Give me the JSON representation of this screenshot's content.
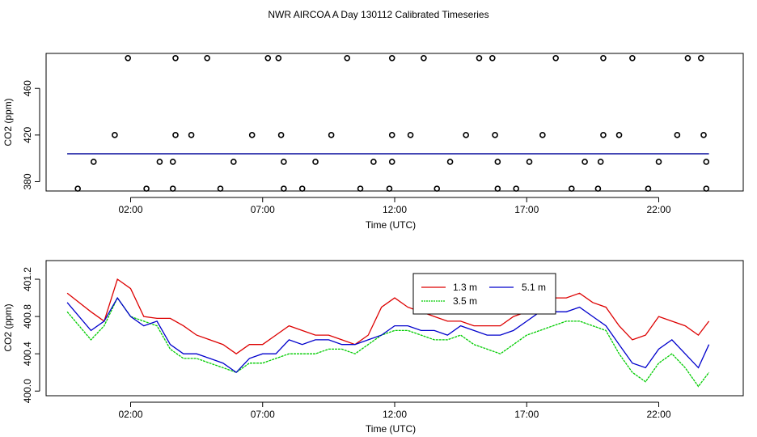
{
  "title": "NWR AIRCOA A  Day 130112  Calibrated Timeseries",
  "chart_data": [
    {
      "type": "scatter",
      "xlabel": "Time (UTC)",
      "ylabel": "CO2 (ppm)",
      "xlim": [
        -1.2,
        25.2
      ],
      "ylim": [
        372,
        490
      ],
      "x_ticks": [
        2,
        7,
        12,
        17,
        22
      ],
      "x_tick_labels": [
        "02:00",
        "07:00",
        "12:00",
        "17:00",
        "22:00"
      ],
      "y_ticks": [
        380,
        420,
        460
      ],
      "y_tick_labels": [
        "380",
        "420",
        "460"
      ],
      "points": [
        {
          "x": 0.0,
          "y": 374
        },
        {
          "x": 0.6,
          "y": 397
        },
        {
          "x": 1.4,
          "y": 420
        },
        {
          "x": 1.9,
          "y": 486
        },
        {
          "x": 2.6,
          "y": 374
        },
        {
          "x": 3.1,
          "y": 397
        },
        {
          "x": 3.6,
          "y": 374
        },
        {
          "x": 3.6,
          "y": 397
        },
        {
          "x": 3.7,
          "y": 420
        },
        {
          "x": 3.7,
          "y": 486
        },
        {
          "x": 4.3,
          "y": 420
        },
        {
          "x": 4.9,
          "y": 486
        },
        {
          "x": 5.4,
          "y": 374
        },
        {
          "x": 5.9,
          "y": 397
        },
        {
          "x": 6.6,
          "y": 420
        },
        {
          "x": 7.2,
          "y": 486
        },
        {
          "x": 7.6,
          "y": 486
        },
        {
          "x": 7.7,
          "y": 420
        },
        {
          "x": 7.8,
          "y": 397
        },
        {
          "x": 7.8,
          "y": 374
        },
        {
          "x": 8.5,
          "y": 374
        },
        {
          "x": 9.0,
          "y": 397
        },
        {
          "x": 9.6,
          "y": 420
        },
        {
          "x": 10.2,
          "y": 486
        },
        {
          "x": 10.7,
          "y": 374
        },
        {
          "x": 11.2,
          "y": 397
        },
        {
          "x": 11.8,
          "y": 374
        },
        {
          "x": 11.9,
          "y": 397
        },
        {
          "x": 11.9,
          "y": 420
        },
        {
          "x": 11.9,
          "y": 486
        },
        {
          "x": 12.6,
          "y": 420
        },
        {
          "x": 13.1,
          "y": 486
        },
        {
          "x": 13.6,
          "y": 374
        },
        {
          "x": 14.1,
          "y": 397
        },
        {
          "x": 14.7,
          "y": 420
        },
        {
          "x": 15.2,
          "y": 486
        },
        {
          "x": 15.7,
          "y": 486
        },
        {
          "x": 15.8,
          "y": 420
        },
        {
          "x": 15.9,
          "y": 397
        },
        {
          "x": 15.9,
          "y": 374
        },
        {
          "x": 16.6,
          "y": 374
        },
        {
          "x": 17.1,
          "y": 397
        },
        {
          "x": 17.6,
          "y": 420
        },
        {
          "x": 18.1,
          "y": 486
        },
        {
          "x": 18.7,
          "y": 374
        },
        {
          "x": 19.2,
          "y": 397
        },
        {
          "x": 19.7,
          "y": 374
        },
        {
          "x": 19.8,
          "y": 397
        },
        {
          "x": 19.9,
          "y": 420
        },
        {
          "x": 19.9,
          "y": 486
        },
        {
          "x": 20.5,
          "y": 420
        },
        {
          "x": 21.0,
          "y": 486
        },
        {
          "x": 21.6,
          "y": 374
        },
        {
          "x": 22.0,
          "y": 397
        },
        {
          "x": 22.7,
          "y": 420
        },
        {
          "x": 23.1,
          "y": 486
        },
        {
          "x": 23.6,
          "y": 486
        },
        {
          "x": 23.7,
          "y": 420
        },
        {
          "x": 23.8,
          "y": 397
        },
        {
          "x": 23.8,
          "y": 374
        }
      ],
      "series": [
        {
          "name": "1.3 m",
          "color": "#dd0000",
          "y": 400.8
        },
        {
          "name": "3.5 m",
          "color": "#00cc00",
          "y": 400.4
        },
        {
          "name": "5.1 m",
          "color": "#0000cc",
          "y": 400.6
        }
      ]
    },
    {
      "type": "line",
      "xlabel": "Time (UTC)",
      "ylabel": "CO2 (ppm)",
      "xlim": [
        -1.2,
        25.2
      ],
      "ylim": [
        399.95,
        401.4
      ],
      "x_ticks": [
        2,
        7,
        12,
        17,
        22
      ],
      "x_tick_labels": [
        "02:00",
        "07:00",
        "12:00",
        "17:00",
        "22:00"
      ],
      "y_ticks": [
        400.0,
        400.4,
        400.8,
        401.2
      ],
      "y_tick_labels": [
        "400.0",
        "400.4",
        "400.8",
        "401.2"
      ],
      "legend": {
        "position": "top-center",
        "entries": [
          "1.3 m",
          "5.1 m",
          "3.5 m"
        ]
      },
      "series": [
        {
          "name": "1.3 m",
          "color": "#dd0000",
          "x": [
            -0.4,
            0.5,
            1.0,
            1.5,
            2.0,
            2.5,
            3.0,
            3.5,
            4.0,
            4.5,
            5.0,
            5.5,
            6.0,
            6.5,
            7.0,
            7.5,
            8.0,
            8.5,
            9.0,
            9.5,
            10.0,
            10.5,
            11.0,
            11.5,
            12.0,
            12.5,
            13.0,
            13.5,
            14.0,
            14.5,
            15.0,
            15.5,
            16.0,
            16.5,
            17.0,
            17.5,
            18.0,
            18.5,
            19.0,
            19.5,
            20.0,
            20.5,
            21.0,
            21.5,
            22.0,
            22.5,
            23.0,
            23.5,
            23.9
          ],
          "values": [
            401.05,
            400.85,
            400.75,
            401.2,
            401.1,
            400.8,
            400.78,
            400.78,
            400.7,
            400.6,
            400.55,
            400.5,
            400.4,
            400.5,
            400.5,
            400.6,
            400.7,
            400.65,
            400.6,
            400.6,
            400.55,
            400.5,
            400.6,
            400.9,
            401.0,
            400.9,
            400.85,
            400.8,
            400.75,
            400.75,
            400.7,
            400.7,
            400.7,
            400.8,
            400.85,
            400.95,
            401.0,
            401.0,
            401.05,
            400.95,
            400.9,
            400.7,
            400.55,
            400.6,
            400.8,
            400.75,
            400.7,
            400.6,
            400.75
          ]
        },
        {
          "name": "3.5 m",
          "color": "#00cc00",
          "x": [
            -0.4,
            0.5,
            1.0,
            1.5,
            2.0,
            2.5,
            3.0,
            3.5,
            4.0,
            4.5,
            5.0,
            5.5,
            6.0,
            6.5,
            7.0,
            7.5,
            8.0,
            8.5,
            9.0,
            9.5,
            10.0,
            10.5,
            11.0,
            11.5,
            12.0,
            12.5,
            13.0,
            13.5,
            14.0,
            14.5,
            15.0,
            15.5,
            16.0,
            16.5,
            17.0,
            17.5,
            18.0,
            18.5,
            19.0,
            19.5,
            20.0,
            20.5,
            21.0,
            21.5,
            22.0,
            22.5,
            23.0,
            23.5,
            23.9
          ],
          "values": [
            400.85,
            400.55,
            400.7,
            401.0,
            400.8,
            400.75,
            400.7,
            400.45,
            400.35,
            400.35,
            400.3,
            400.25,
            400.2,
            400.3,
            400.3,
            400.35,
            400.4,
            400.4,
            400.4,
            400.45,
            400.45,
            400.4,
            400.5,
            400.6,
            400.65,
            400.65,
            400.6,
            400.55,
            400.55,
            400.6,
            400.5,
            400.45,
            400.4,
            400.5,
            400.6,
            400.65,
            400.7,
            400.75,
            400.75,
            400.7,
            400.65,
            400.4,
            400.2,
            400.1,
            400.3,
            400.4,
            400.25,
            400.05,
            400.2
          ]
        },
        {
          "name": "5.1 m",
          "color": "#0000cc",
          "x": [
            -0.4,
            0.5,
            1.0,
            1.5,
            2.0,
            2.5,
            3.0,
            3.5,
            4.0,
            4.5,
            5.0,
            5.5,
            6.0,
            6.5,
            7.0,
            7.5,
            8.0,
            8.5,
            9.0,
            9.5,
            10.0,
            10.5,
            11.0,
            11.5,
            12.0,
            12.5,
            13.0,
            13.5,
            14.0,
            14.5,
            15.0,
            15.5,
            16.0,
            16.5,
            17.0,
            17.5,
            18.0,
            18.5,
            19.0,
            19.5,
            20.0,
            20.5,
            21.0,
            21.5,
            22.0,
            22.5,
            23.0,
            23.5,
            23.9
          ],
          "values": [
            400.95,
            400.65,
            400.75,
            401.0,
            400.8,
            400.7,
            400.75,
            400.5,
            400.4,
            400.4,
            400.35,
            400.3,
            400.2,
            400.35,
            400.4,
            400.4,
            400.55,
            400.5,
            400.55,
            400.55,
            400.5,
            400.5,
            400.55,
            400.6,
            400.7,
            400.7,
            400.65,
            400.65,
            400.6,
            400.7,
            400.65,
            400.6,
            400.6,
            400.65,
            400.75,
            400.85,
            400.85,
            400.85,
            400.9,
            400.8,
            400.7,
            400.5,
            400.3,
            400.25,
            400.45,
            400.55,
            400.4,
            400.25,
            400.5
          ]
        }
      ]
    }
  ]
}
